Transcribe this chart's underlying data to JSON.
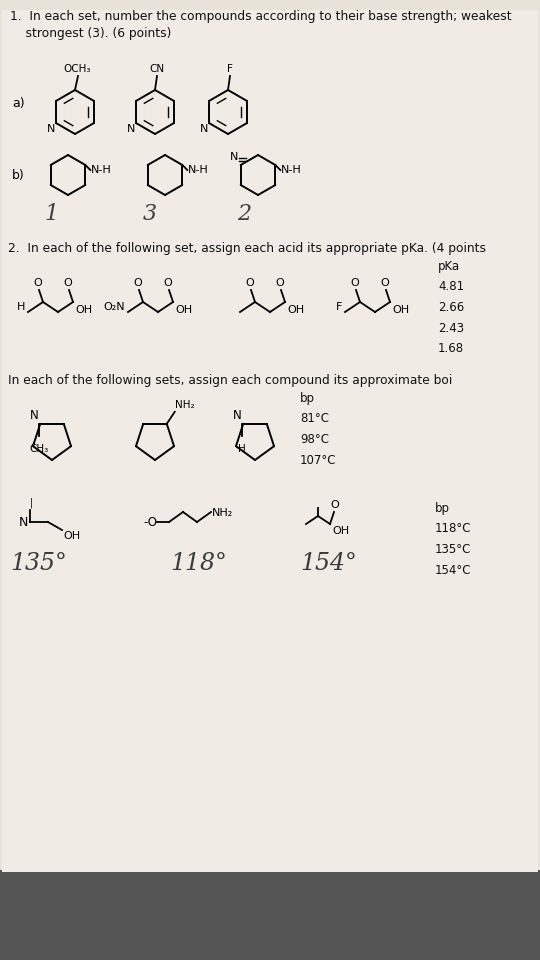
{
  "bg_paper": "#e8e3da",
  "bg_dark": "#555555",
  "paper_color": "#f0ece5",
  "title_q1": "1.  In each set, number the compounds according to their base strength; weakest\n    strongest (3). (6 points)",
  "section2": "2.  In each of the following set, assign each acid its appropriate pKa. (4 points",
  "section3": "In each of the following sets, assign each compound its approximate boi",
  "pka_label": "pKa\n4.81\n2.66\n2.43\n1.68",
  "bp1_label": "bp\n81°C\n98°C\n107°C",
  "bp2_label": "bp\n118°C\n135°C\n154°C",
  "hw_b": [
    "1",
    "3",
    "2"
  ],
  "hw_bp_bottom": [
    "135°",
    "118°",
    "154°"
  ],
  "label_a": "a)",
  "label_b": "b)"
}
